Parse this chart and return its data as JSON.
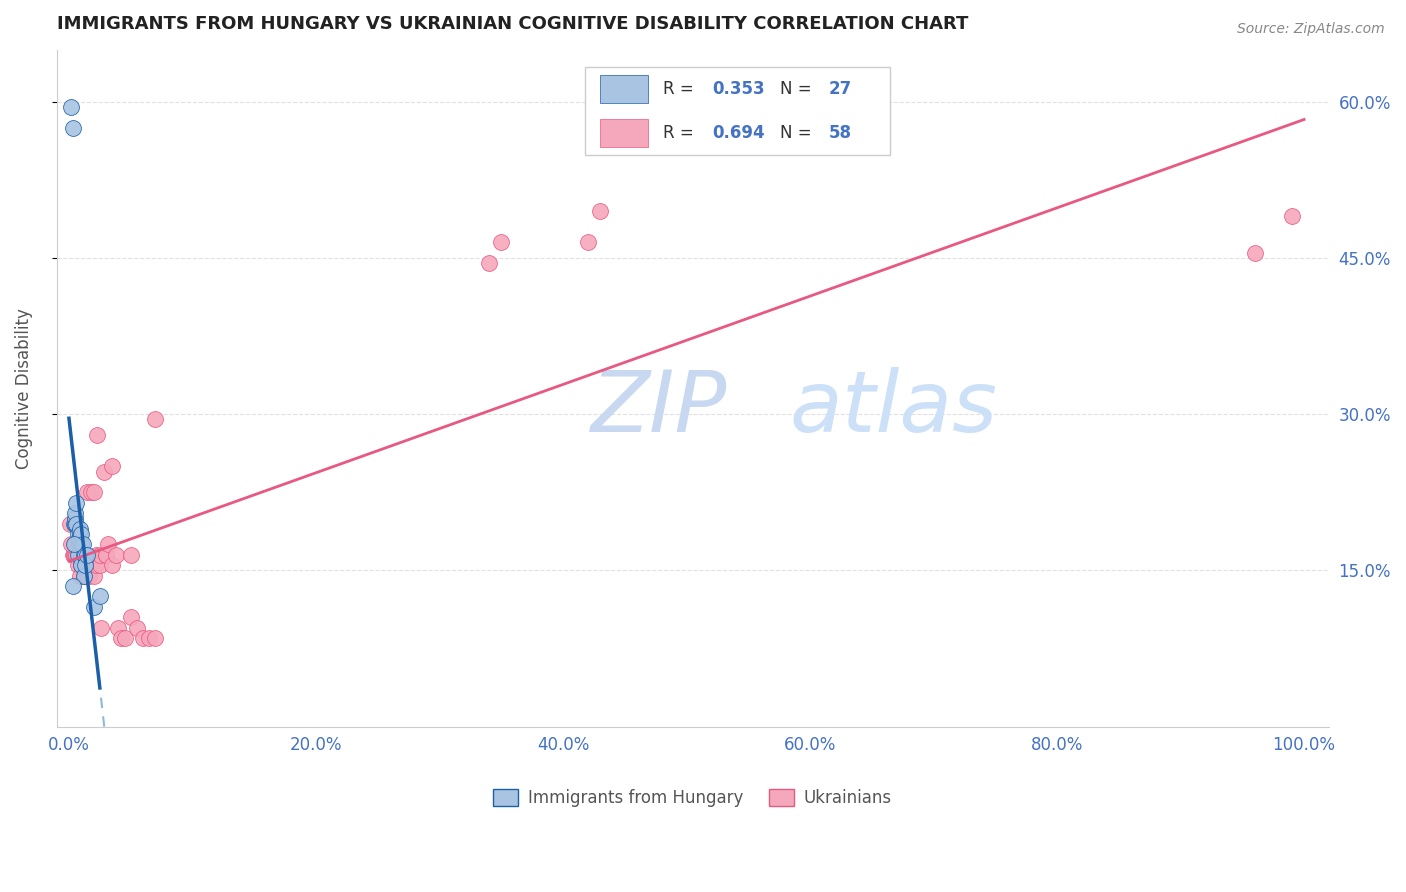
{
  "title": "IMMIGRANTS FROM HUNGARY VS UKRAINIAN COGNITIVE DISABILITY CORRELATION CHART",
  "source": "Source: ZipAtlas.com",
  "xlabel_ticks": [
    "0.0%",
    "20.0%",
    "40.0%",
    "60.0%",
    "80.0%",
    "100.0%"
  ],
  "xlabel_vals": [
    0.0,
    0.2,
    0.4,
    0.6,
    0.8,
    1.0
  ],
  "ylabel": "Cognitive Disability",
  "ylabel_ticks_right": [
    "15.0%",
    "30.0%",
    "45.0%",
    "60.0%"
  ],
  "ylabel_vals_right": [
    0.15,
    0.3,
    0.45,
    0.6
  ],
  "hungary_R": 0.353,
  "hungary_N": 27,
  "ukraine_R": 0.694,
  "ukraine_N": 58,
  "hungary_color": "#a8c4e2",
  "ukraine_color": "#f5a8bc",
  "hungary_line_color": "#1a5fa8",
  "ukraine_line_color": "#e85880",
  "hungary_dashed_color": "#90b8d8",
  "watermark_zip_color": "#c5d8f0",
  "watermark_atlas_color": "#c8ddf5",
  "background_color": "#ffffff",
  "grid_color": "#e0e0e0",
  "title_color": "#222222",
  "axis_label_color": "#4472c4",
  "hungary_x": [
    0.002,
    0.003,
    0.004,
    0.005,
    0.005,
    0.005,
    0.006,
    0.006,
    0.007,
    0.007,
    0.008,
    0.008,
    0.009,
    0.009,
    0.01,
    0.01,
    0.01,
    0.011,
    0.012,
    0.012,
    0.013,
    0.013,
    0.015,
    0.02,
    0.003,
    0.004,
    0.025
  ],
  "hungary_y": [
    0.595,
    0.575,
    0.195,
    0.195,
    0.2,
    0.205,
    0.195,
    0.215,
    0.185,
    0.165,
    0.175,
    0.18,
    0.185,
    0.19,
    0.175,
    0.185,
    0.155,
    0.175,
    0.165,
    0.145,
    0.165,
    0.155,
    0.165,
    0.115,
    0.135,
    0.175,
    0.125
  ],
  "ukraine_x": [
    0.001,
    0.003,
    0.004,
    0.004,
    0.005,
    0.005,
    0.006,
    0.006,
    0.007,
    0.007,
    0.008,
    0.008,
    0.009,
    0.01,
    0.01,
    0.011,
    0.012,
    0.012,
    0.013,
    0.013,
    0.014,
    0.015,
    0.015,
    0.016,
    0.017,
    0.018,
    0.02,
    0.02,
    0.022,
    0.022,
    0.023,
    0.025,
    0.025,
    0.026,
    0.028,
    0.03,
    0.03,
    0.032,
    0.035,
    0.035,
    0.038,
    0.04,
    0.042,
    0.045,
    0.05,
    0.05,
    0.055,
    0.06,
    0.065,
    0.07,
    0.07,
    0.34,
    0.35,
    0.42,
    0.43,
    0.96,
    0.99,
    0.002
  ],
  "ukraine_y": [
    0.195,
    0.165,
    0.165,
    0.175,
    0.165,
    0.175,
    0.165,
    0.175,
    0.175,
    0.155,
    0.165,
    0.175,
    0.145,
    0.155,
    0.165,
    0.155,
    0.145,
    0.165,
    0.145,
    0.165,
    0.155,
    0.145,
    0.225,
    0.145,
    0.155,
    0.225,
    0.145,
    0.225,
    0.155,
    0.165,
    0.28,
    0.155,
    0.165,
    0.095,
    0.245,
    0.165,
    0.165,
    0.175,
    0.25,
    0.155,
    0.165,
    0.095,
    0.085,
    0.085,
    0.105,
    0.165,
    0.095,
    0.085,
    0.085,
    0.295,
    0.085,
    0.445,
    0.465,
    0.465,
    0.495,
    0.455,
    0.49,
    0.175
  ],
  "ylim_min": 0.0,
  "ylim_max": 0.65,
  "xlim_min": -0.01,
  "xlim_max": 1.02
}
